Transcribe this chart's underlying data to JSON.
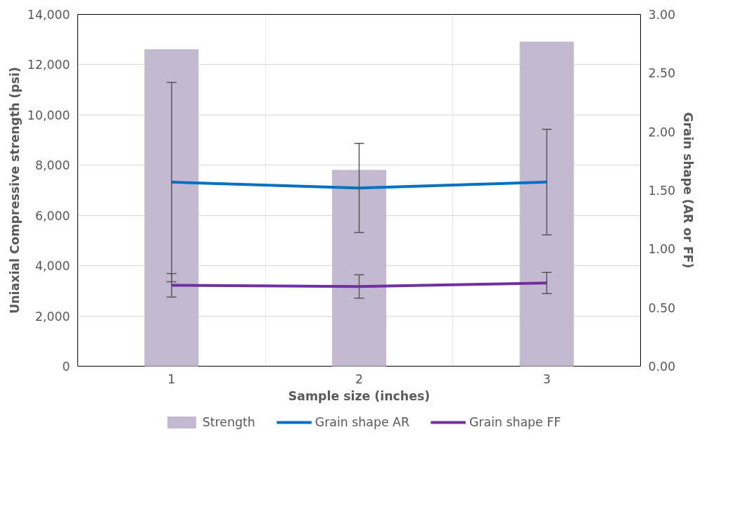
{
  "chart_data": {
    "type": "bar",
    "xlabel": "Sample size (inches)",
    "ylabel": "Uniaxial Compressive strength (psi)",
    "y2label": "Grain shape (AR or FF)",
    "categories": [
      "1",
      "2",
      "3"
    ],
    "series": [
      {
        "name": "Strength",
        "color": "#c3b9d1",
        "values": [
          12600,
          7800,
          12900
        ]
      },
      {
        "name": "Grain shape AR",
        "type": "line",
        "axis": "y2",
        "color": "#0070c0",
        "values": [
          1.57,
          1.52,
          1.57
        ],
        "errors": [
          [
            0.72,
            2.42
          ],
          [
            1.14,
            1.9
          ],
          [
            1.12,
            2.02
          ]
        ]
      },
      {
        "name": "Grain shape FF",
        "type": "line",
        "axis": "y2",
        "color": "#7030a0",
        "values": [
          0.69,
          0.68,
          0.71
        ],
        "errors": [
          [
            0.59,
            0.79
          ],
          [
            0.58,
            0.78
          ],
          [
            0.62,
            0.8
          ]
        ]
      }
    ],
    "ylim": [
      0,
      14000
    ],
    "yticks": [
      0,
      {
        "value": 2000,
        "label": "2,000"
      },
      {
        "value": 4000,
        "label": "4,000"
      },
      {
        "value": 6000,
        "label": "6,000"
      },
      {
        "value": 8000,
        "label": "8,000"
      },
      {
        "value": 10000,
        "label": "10,000"
      },
      {
        "value": 12000,
        "label": "12,000"
      },
      {
        "value": 14000,
        "label": "14,000"
      }
    ],
    "y2lim": [
      0,
      3
    ],
    "y2ticks": [
      {
        "value": 0,
        "label": "0.00"
      },
      {
        "value": 0.5,
        "label": "0.50"
      },
      {
        "value": 1,
        "label": "1.00"
      },
      {
        "value": 1.5,
        "label": "1.50"
      },
      {
        "value": 2,
        "label": "2.00"
      },
      {
        "value": 2.5,
        "label": "2.50"
      },
      {
        "value": 3,
        "label": "3.00"
      }
    ],
    "grid": true,
    "legend": "bottom",
    "line_style": "solid",
    "marker": "none"
  }
}
